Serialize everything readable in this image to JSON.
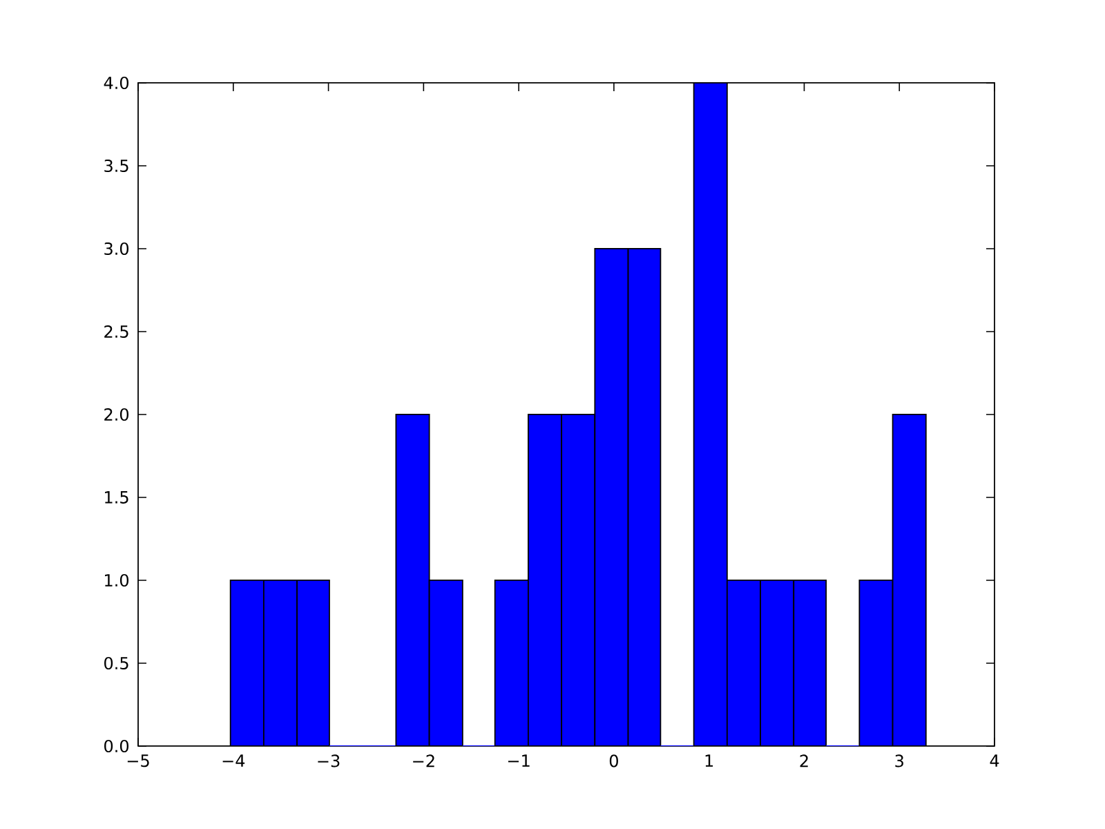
{
  "chart_data": {
    "type": "histogram",
    "bins": [
      -4.03,
      -3.68,
      -3.33,
      -2.99,
      -2.29,
      -1.94,
      -1.59,
      -1.25,
      -0.9,
      -0.55,
      -0.2,
      0.15,
      0.49,
      0.84,
      1.19,
      1.54,
      1.89,
      2.23,
      2.58,
      2.93,
      3.28
    ],
    "values": [
      1,
      1,
      1,
      0,
      2,
      1,
      0,
      1,
      2,
      2,
      3,
      3,
      0,
      4,
      1,
      1,
      1,
      0,
      1,
      2
    ],
    "color": "#0000ff",
    "xlim": [
      -5,
      4
    ],
    "ylim": [
      0,
      4
    ],
    "xticks": [
      {
        "value": -5,
        "label": "−5"
      },
      {
        "value": -4,
        "label": "−4"
      },
      {
        "value": -3,
        "label": "−3"
      },
      {
        "value": -2,
        "label": "−2"
      },
      {
        "value": -1,
        "label": "−1"
      },
      0,
      1,
      2,
      3,
      4
    ],
    "yticks": [
      {
        "value": 0,
        "label": "0.0"
      },
      {
        "value": 0.5,
        "label": "0.5"
      },
      {
        "value": 1,
        "label": "1.0"
      },
      {
        "value": 1.5,
        "label": "1.5"
      },
      {
        "value": 2,
        "label": "2.0"
      },
      {
        "value": 2.5,
        "label": "2.5"
      },
      {
        "value": 3,
        "label": "3.0"
      },
      {
        "value": 3.5,
        "label": "3.5"
      },
      {
        "value": 4,
        "label": "4.0"
      }
    ],
    "grid": false
  }
}
